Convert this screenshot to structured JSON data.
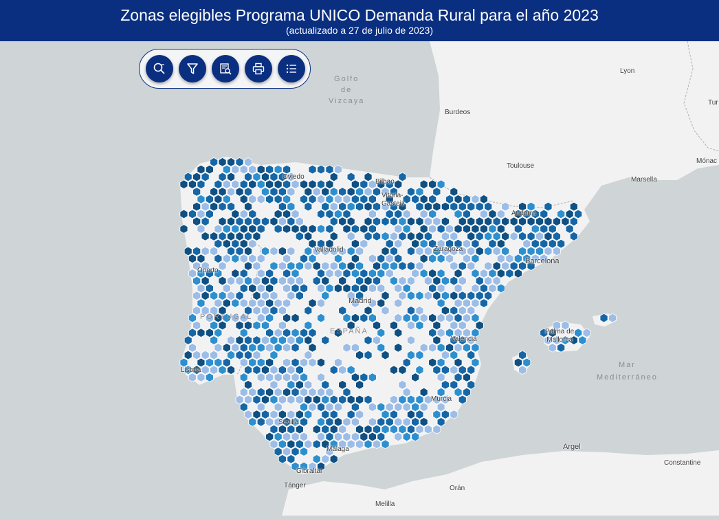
{
  "header": {
    "title": "Zonas elegibles Programa UNICO Demanda Rural para el año 2023",
    "subtitle": "(actualizado a 27 de julio de 2023)"
  },
  "toolbar": {
    "buttons": [
      {
        "name": "search-zoom-button",
        "icon": "magnifier-icon"
      },
      {
        "name": "filter-button",
        "icon": "funnel-icon"
      },
      {
        "name": "query-button",
        "icon": "document-search-icon"
      },
      {
        "name": "print-button",
        "icon": "printer-icon"
      },
      {
        "name": "legend-button",
        "icon": "list-icon"
      }
    ]
  },
  "map": {
    "colors": {
      "sea": "#cfd4d6",
      "land": "#f2f2f2",
      "hex_light": "#9dbde6",
      "hex_mid": "#2d8fce",
      "hex_dark": "#1666a5",
      "hex_darkest": "#0f4f82"
    },
    "labels": {
      "golfo": "Golfo\nde\nVizcaya",
      "mar": "Mar\nMediterráneo",
      "portugal": "PORTUGAL",
      "espana": "ESPAÑA",
      "lyon": "Lyon",
      "burdeos": "Burdeos",
      "toulouse": "Toulouse",
      "marsella": "Marsella",
      "monaco": "Mónac",
      "turin": "Tur",
      "andorra": "Andorra",
      "barcelona": "Barcelona",
      "zaragoza": "Zaragoza",
      "bilbao": "Bilbao",
      "vitoria": "Vitoria-\nGasteiz",
      "oviedo": "Oviedo",
      "valladolid": "Valladolid",
      "madrid": "Madrid",
      "oporto": "Oporto",
      "lisboa": "Lisboa",
      "valencia": "Valencia",
      "palma": "Palma de\nMallorca",
      "murcia": "Murcia",
      "sevilla": "Sevilla",
      "malaga": "Málaga",
      "gibraltar": "Gibraltar",
      "tanger": "Tánger",
      "oran": "Orán",
      "argel": "Argel",
      "constantine": "Constantine",
      "melilla": "Melilla"
    }
  }
}
